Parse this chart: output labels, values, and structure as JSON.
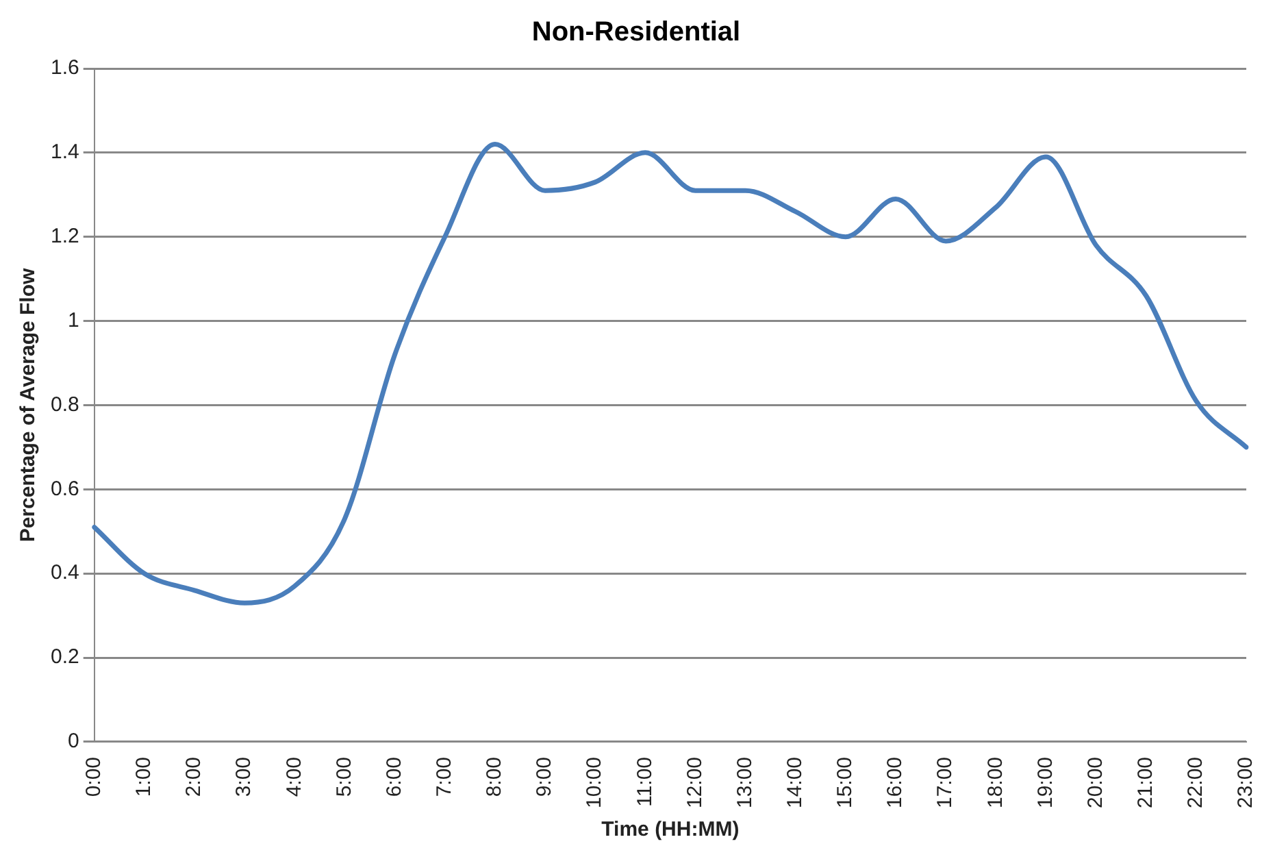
{
  "chart_data": {
    "type": "line",
    "title": "Non-Residential",
    "xlabel": "Time (HH:MM)",
    "ylabel": "Percentage of Average Flow",
    "categories": [
      "0:00",
      "1:00",
      "2:00",
      "3:00",
      "4:00",
      "5:00",
      "6:00",
      "7:00",
      "8:00",
      "9:00",
      "10:00",
      "11:00",
      "12:00",
      "13:00",
      "14:00",
      "15:00",
      "16:00",
      "17:00",
      "18:00",
      "19:00",
      "20:00",
      "21:00",
      "22:00",
      "23:00"
    ],
    "series": [
      {
        "color": "#4a7ebb",
        "values": [
          0.51,
          0.4,
          0.36,
          0.33,
          0.37,
          0.53,
          0.92,
          1.2,
          1.42,
          1.31,
          1.33,
          1.4,
          1.31,
          1.31,
          1.26,
          1.2,
          1.29,
          1.19,
          1.27,
          1.39,
          1.18,
          1.06,
          0.81,
          0.7
        ]
      }
    ],
    "ylim": [
      0,
      1.6
    ],
    "yticks": [
      0,
      0.2,
      0.4,
      0.6,
      0.8,
      1,
      1.2,
      1.4,
      1.6
    ],
    "grid": "y",
    "legend": false,
    "marker": "none",
    "line_style": "solid"
  }
}
